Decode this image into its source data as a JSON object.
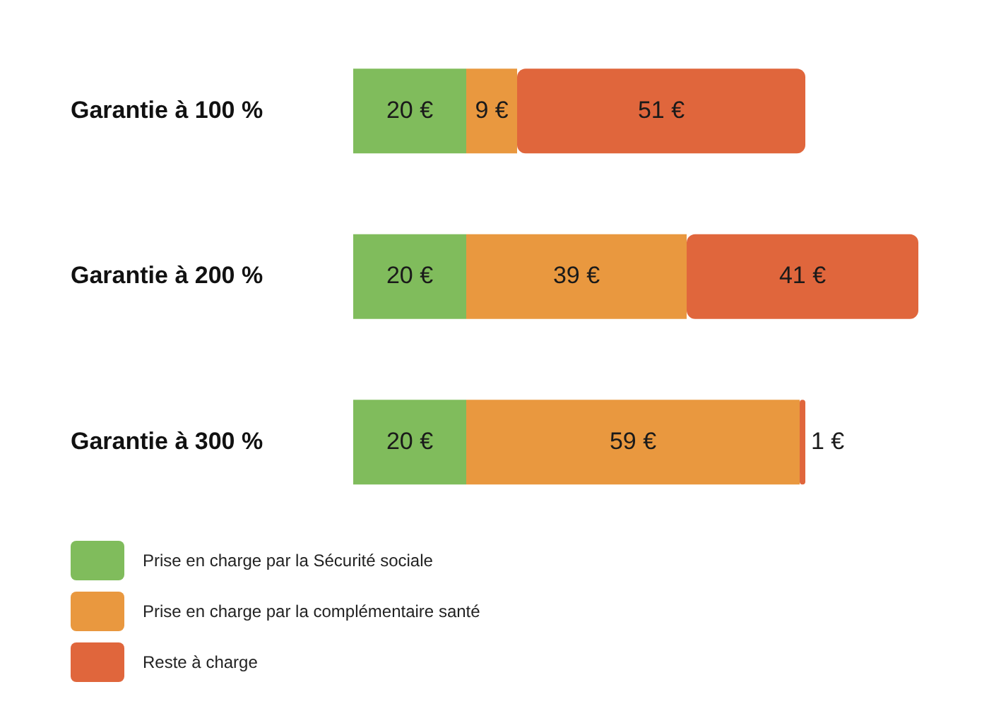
{
  "chart_data": {
    "type": "bar",
    "orientation": "horizontal",
    "stacked": true,
    "categories": [
      "Garantie à 100 %",
      "Garantie à 200 %",
      "Garantie à 300 %"
    ],
    "series": [
      {
        "name": "Prise en charge par la Sécurité sociale",
        "color": "#80bc5c",
        "values": [
          20,
          20,
          20
        ],
        "value_labels": [
          "20 €",
          "20 €",
          "20 €"
        ]
      },
      {
        "name": "Prise en charge par la complémentaire santé",
        "color": "#e9983f",
        "values": [
          9,
          39,
          59
        ],
        "value_labels": [
          "9 €",
          "39 €",
          "59 €"
        ]
      },
      {
        "name": "Reste à charge",
        "color": "#e0663c",
        "values": [
          51,
          41,
          1
        ],
        "value_labels": [
          "51 €",
          "41 €",
          "1 €"
        ]
      }
    ],
    "xlim": [
      0,
      100
    ],
    "tick_labels": "y",
    "legend": "bottom left"
  }
}
